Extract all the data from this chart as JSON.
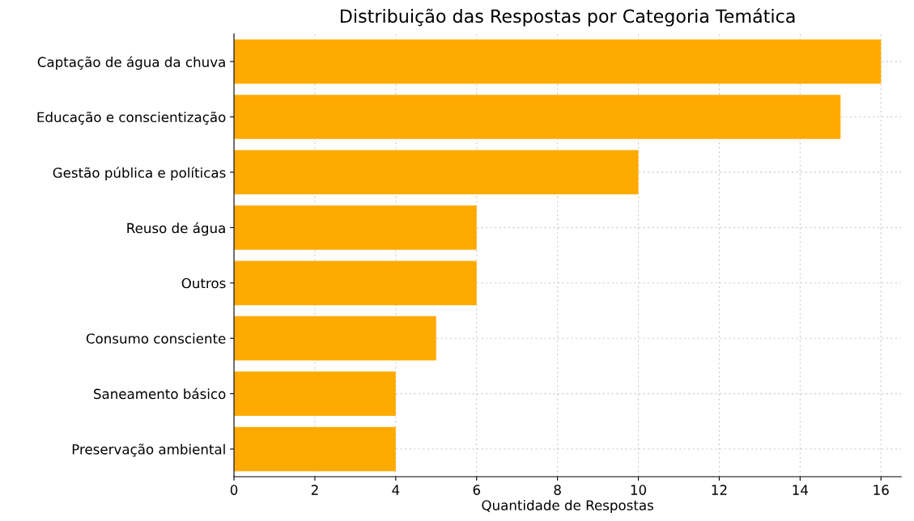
{
  "chart_data": {
    "type": "bar",
    "orientation": "horizontal",
    "title": "Distribuição das Respostas por Categoria Temática",
    "xlabel": "Quantidade de Respostas",
    "categories": [
      "Captação de água da chuva",
      "Educação e conscientização",
      "Gestão pública e políticas",
      "Reuso de água",
      "Outros",
      "Consumo consciente",
      "Saneamento básico",
      "Preservação ambiental"
    ],
    "values": [
      16,
      15,
      10,
      6,
      6,
      5,
      4,
      4
    ],
    "color": "#ffaa00",
    "xlim": [
      0,
      16.5
    ],
    "xticks": [
      0,
      2,
      4,
      6,
      8,
      10,
      12,
      14,
      16
    ],
    "grid": true
  }
}
